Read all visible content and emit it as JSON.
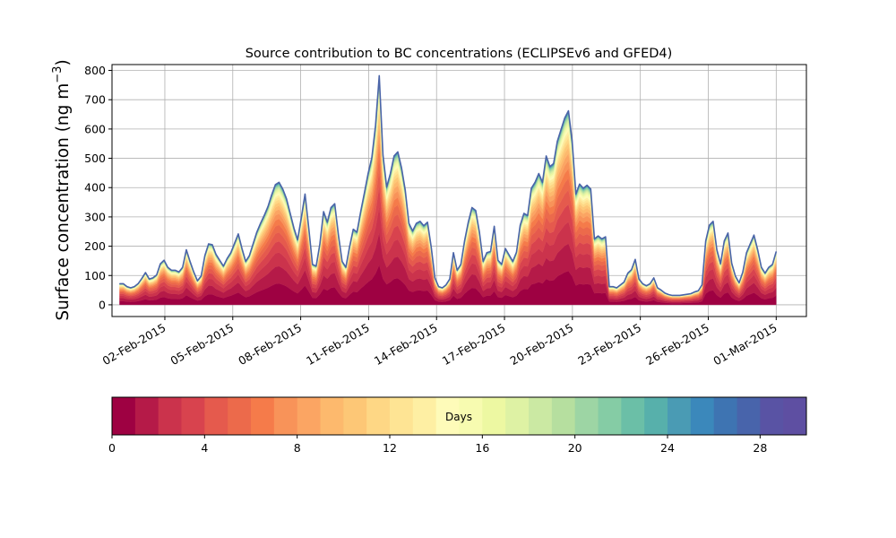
{
  "chart_data": {
    "type": "area",
    "title": "Source contribution to BC concentrations (ECLIPSEv6 and GFED4)",
    "ylabel_main": "Surface concentration (ng m",
    "ylabel_sup": "−3",
    "ylabel_close": ")",
    "xlabel": "",
    "ylim": [
      -40,
      820
    ],
    "yticks": [
      0,
      100,
      200,
      300,
      400,
      500,
      600,
      700,
      800
    ],
    "x_start": "2015-01-31",
    "x_end": "2015-03-01",
    "xlim": [
      "2015-01-30T16:00",
      "2015-03-02T08:00"
    ],
    "xtick_dates": [
      "2015-02-02",
      "2015-02-05",
      "2015-02-08",
      "2015-02-11",
      "2015-02-14",
      "2015-02-17",
      "2015-02-20",
      "2015-02-23",
      "2015-02-26",
      "2015-03-01"
    ],
    "xtick_labels": [
      "02-Feb-2015",
      "05-Feb-2015",
      "08-Feb-2015",
      "11-Feb-2015",
      "14-Feb-2015",
      "17-Feb-2015",
      "20-Feb-2015",
      "23-Feb-2015",
      "26-Feb-2015",
      "01-Mar-2015"
    ],
    "grid": true,
    "total": [
      72,
      72,
      62,
      58,
      62,
      72,
      90,
      110,
      88,
      92,
      102,
      140,
      152,
      128,
      118,
      118,
      112,
      128,
      188,
      148,
      112,
      82,
      98,
      168,
      208,
      205,
      172,
      152,
      132,
      158,
      178,
      210,
      242,
      192,
      148,
      168,
      208,
      248,
      278,
      305,
      335,
      375,
      410,
      418,
      395,
      362,
      312,
      262,
      222,
      298,
      378,
      262,
      138,
      132,
      208,
      318,
      282,
      332,
      345,
      238,
      148,
      128,
      198,
      258,
      248,
      318,
      382,
      448,
      502,
      612,
      782,
      512,
      402,
      448,
      508,
      522,
      468,
      392,
      278,
      252,
      278,
      285,
      270,
      282,
      198,
      92,
      62,
      58,
      68,
      88,
      178,
      118,
      138,
      218,
      282,
      332,
      322,
      248,
      148,
      178,
      182,
      268,
      152,
      138,
      192,
      170,
      148,
      180,
      272,
      312,
      305,
      398,
      418,
      448,
      418,
      508,
      472,
      482,
      558,
      598,
      638,
      662,
      558,
      378,
      412,
      398,
      408,
      395,
      225,
      235,
      225,
      232,
      62,
      62,
      58,
      68,
      78,
      108,
      120,
      155,
      88,
      72,
      65,
      72,
      92,
      58,
      50,
      40,
      35,
      32,
      32,
      32,
      34,
      36,
      38,
      44,
      48,
      68,
      218,
      272,
      285,
      188,
      140,
      218,
      245,
      142,
      98,
      75,
      112,
      178,
      208,
      238,
      188,
      128,
      108,
      128,
      138,
      182
    ],
    "series_fraction": [
      0.91,
      0.82,
      0.72,
      0.64,
      0.57,
      0.51,
      0.46,
      0.42,
      0.39,
      0.36,
      0.34,
      0.32,
      0.305,
      0.29,
      0.28,
      0.27,
      0.262,
      0.255,
      0.25,
      0.246,
      0.242,
      0.239,
      0.236,
      0.234,
      0.232,
      0.23,
      0.228,
      0.226,
      0.225,
      0.224
    ],
    "colorbar": {
      "label": "Days",
      "min": 0,
      "max": 30,
      "ticks": [
        0,
        4,
        8,
        12,
        16,
        20,
        24,
        28
      ],
      "colors": [
        "#9e0142",
        "#b51a48",
        "#cb334c",
        "#d8434e",
        "#e55a4d",
        "#ec6a4b",
        "#f57b4a",
        "#f89359",
        "#fba563",
        "#fdb96d",
        "#fdc776",
        "#fed785",
        "#fee494",
        "#feefa3",
        "#fefbb9",
        "#f7fbb0",
        "#edf8a2",
        "#def2a4",
        "#cbe9a3",
        "#b6df9f",
        "#9dd5a4",
        "#85cca5",
        "#6bbfa7",
        "#57b0ab",
        "#4a9bb4",
        "#3b88bb",
        "#3e74b2",
        "#4864ab",
        "#5953a4",
        "#5e4fa2"
      ]
    }
  }
}
